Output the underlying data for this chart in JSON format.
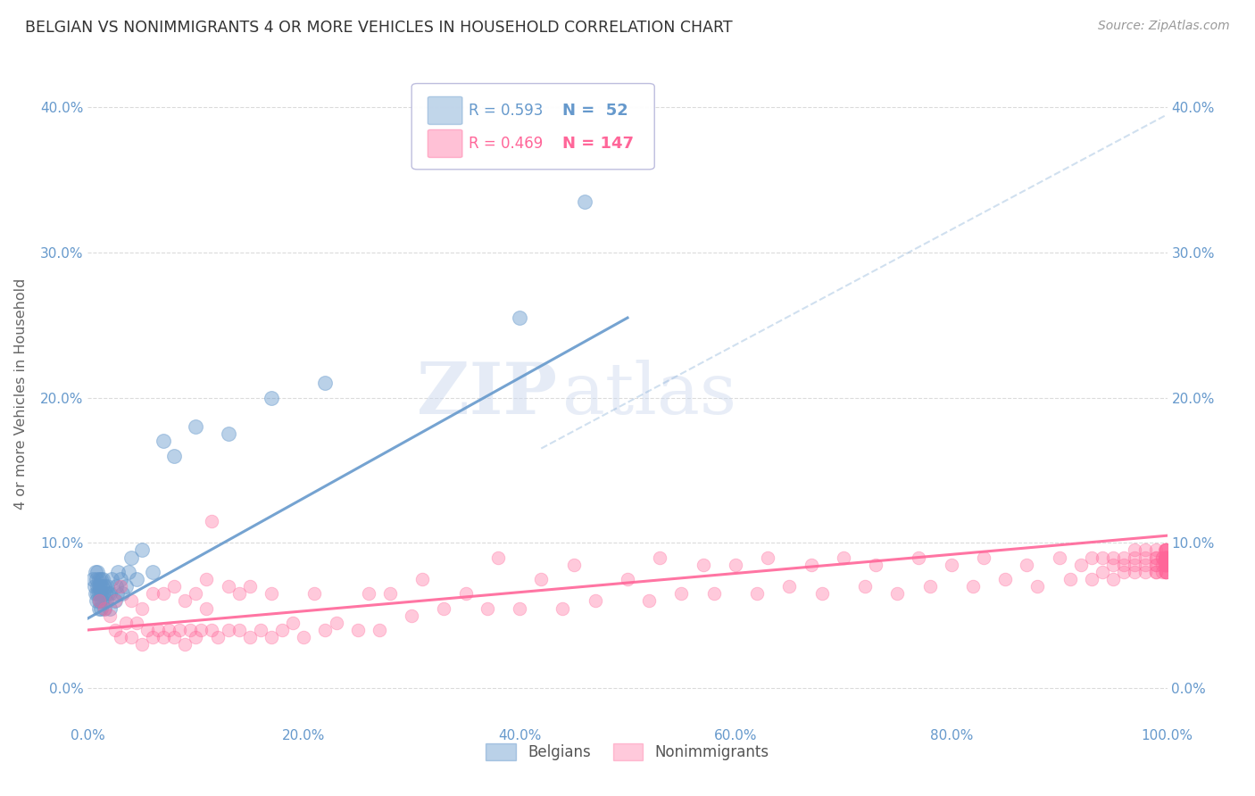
{
  "title": "BELGIAN VS NONIMMIGRANTS 4 OR MORE VEHICLES IN HOUSEHOLD CORRELATION CHART",
  "source": "Source: ZipAtlas.com",
  "ylabel": "4 or more Vehicles in Household",
  "xlim": [
    0.0,
    1.0
  ],
  "ylim": [
    -0.025,
    0.43
  ],
  "yticks": [
    0.0,
    0.1,
    0.2,
    0.3,
    0.4
  ],
  "ytick_labels": [
    "0.0%",
    "10.0%",
    "20.0%",
    "30.0%",
    "40.0%"
  ],
  "xticks": [
    0.0,
    0.2,
    0.4,
    0.6,
    0.8,
    1.0
  ],
  "xtick_labels": [
    "0.0%",
    "20.0%",
    "40.0%",
    "60.0%",
    "80.0%",
    "100.0%"
  ],
  "belgian_color": "#6699cc",
  "nonimmigrant_color": "#ff6699",
  "belgian_R": 0.593,
  "belgian_N": 52,
  "nonimmigrant_R": 0.469,
  "nonimmigrant_N": 147,
  "belgian_trend": [
    0.0,
    0.048,
    0.5,
    0.255
  ],
  "nonimmigrant_trend": [
    0.0,
    0.04,
    1.0,
    0.105
  ],
  "diagonal": [
    0.42,
    0.165,
    1.0,
    0.395
  ],
  "watermark_zip": "ZIP",
  "watermark_atlas": "atlas",
  "background_color": "#ffffff",
  "grid_color": "#cccccc",
  "belgian_x": [
    0.005,
    0.006,
    0.007,
    0.007,
    0.008,
    0.008,
    0.009,
    0.009,
    0.009,
    0.01,
    0.01,
    0.01,
    0.01,
    0.01,
    0.011,
    0.011,
    0.012,
    0.012,
    0.012,
    0.013,
    0.013,
    0.014,
    0.014,
    0.015,
    0.015,
    0.016,
    0.017,
    0.018,
    0.019,
    0.02,
    0.02,
    0.022,
    0.025,
    0.026,
    0.027,
    0.028,
    0.03,
    0.032,
    0.035,
    0.038,
    0.04,
    0.045,
    0.05,
    0.06,
    0.07,
    0.08,
    0.1,
    0.13,
    0.17,
    0.22,
    0.4,
    0.46
  ],
  "belgian_y": [
    0.075,
    0.07,
    0.065,
    0.08,
    0.06,
    0.075,
    0.065,
    0.07,
    0.08,
    0.055,
    0.06,
    0.065,
    0.07,
    0.075,
    0.06,
    0.07,
    0.055,
    0.065,
    0.075,
    0.06,
    0.07,
    0.065,
    0.075,
    0.055,
    0.07,
    0.065,
    0.06,
    0.07,
    0.065,
    0.055,
    0.065,
    0.075,
    0.06,
    0.07,
    0.065,
    0.08,
    0.075,
    0.065,
    0.07,
    0.08,
    0.09,
    0.075,
    0.095,
    0.08,
    0.17,
    0.16,
    0.18,
    0.175,
    0.2,
    0.21,
    0.255,
    0.335
  ],
  "nonimmigrant_x": [
    0.01,
    0.015,
    0.02,
    0.025,
    0.025,
    0.03,
    0.03,
    0.035,
    0.04,
    0.04,
    0.045,
    0.05,
    0.05,
    0.055,
    0.06,
    0.06,
    0.065,
    0.07,
    0.07,
    0.075,
    0.08,
    0.08,
    0.085,
    0.09,
    0.09,
    0.095,
    0.1,
    0.1,
    0.105,
    0.11,
    0.11,
    0.115,
    0.12,
    0.13,
    0.13,
    0.14,
    0.14,
    0.15,
    0.15,
    0.16,
    0.17,
    0.17,
    0.18,
    0.19,
    0.2,
    0.21,
    0.22,
    0.23,
    0.25,
    0.26,
    0.27,
    0.28,
    0.3,
    0.31,
    0.33,
    0.35,
    0.37,
    0.38,
    0.4,
    0.42,
    0.44,
    0.45,
    0.47,
    0.5,
    0.52,
    0.53,
    0.55,
    0.57,
    0.58,
    0.6,
    0.62,
    0.63,
    0.65,
    0.67,
    0.68,
    0.7,
    0.72,
    0.73,
    0.75,
    0.77,
    0.78,
    0.8,
    0.82,
    0.83,
    0.85,
    0.87,
    0.88,
    0.9,
    0.91,
    0.92,
    0.93,
    0.93,
    0.94,
    0.94,
    0.95,
    0.95,
    0.95,
    0.96,
    0.96,
    0.96,
    0.97,
    0.97,
    0.97,
    0.97,
    0.98,
    0.98,
    0.98,
    0.98,
    0.99,
    0.99,
    0.99,
    0.99,
    0.99,
    0.99,
    0.99,
    0.995,
    0.995,
    0.995,
    0.995,
    0.998,
    0.998,
    0.998,
    0.999,
    0.999,
    0.999,
    0.999,
    0.999,
    0.999,
    0.999,
    0.999,
    0.999,
    0.999,
    0.999,
    0.999,
    0.999,
    0.999,
    0.999,
    0.999,
    0.999,
    0.999,
    0.999,
    0.999,
    0.999,
    0.999,
    0.999,
    0.999,
    0.115
  ],
  "nonimmigrant_y": [
    0.06,
    0.055,
    0.05,
    0.04,
    0.06,
    0.035,
    0.07,
    0.045,
    0.035,
    0.06,
    0.045,
    0.03,
    0.055,
    0.04,
    0.035,
    0.065,
    0.04,
    0.035,
    0.065,
    0.04,
    0.035,
    0.07,
    0.04,
    0.03,
    0.06,
    0.04,
    0.035,
    0.065,
    0.04,
    0.055,
    0.075,
    0.04,
    0.035,
    0.04,
    0.07,
    0.04,
    0.065,
    0.035,
    0.07,
    0.04,
    0.035,
    0.065,
    0.04,
    0.045,
    0.035,
    0.065,
    0.04,
    0.045,
    0.04,
    0.065,
    0.04,
    0.065,
    0.05,
    0.075,
    0.055,
    0.065,
    0.055,
    0.09,
    0.055,
    0.075,
    0.055,
    0.085,
    0.06,
    0.075,
    0.06,
    0.09,
    0.065,
    0.085,
    0.065,
    0.085,
    0.065,
    0.09,
    0.07,
    0.085,
    0.065,
    0.09,
    0.07,
    0.085,
    0.065,
    0.09,
    0.07,
    0.085,
    0.07,
    0.09,
    0.075,
    0.085,
    0.07,
    0.09,
    0.075,
    0.085,
    0.075,
    0.09,
    0.08,
    0.09,
    0.075,
    0.085,
    0.09,
    0.08,
    0.085,
    0.09,
    0.08,
    0.085,
    0.09,
    0.095,
    0.08,
    0.085,
    0.09,
    0.095,
    0.08,
    0.085,
    0.09,
    0.09,
    0.095,
    0.08,
    0.085,
    0.085,
    0.09,
    0.09,
    0.08,
    0.085,
    0.09,
    0.095,
    0.08,
    0.085,
    0.09,
    0.09,
    0.095,
    0.08,
    0.085,
    0.09,
    0.09,
    0.095,
    0.08,
    0.085,
    0.09,
    0.09,
    0.095,
    0.085,
    0.09,
    0.085,
    0.09,
    0.095,
    0.08,
    0.085,
    0.09,
    0.09,
    0.115
  ]
}
